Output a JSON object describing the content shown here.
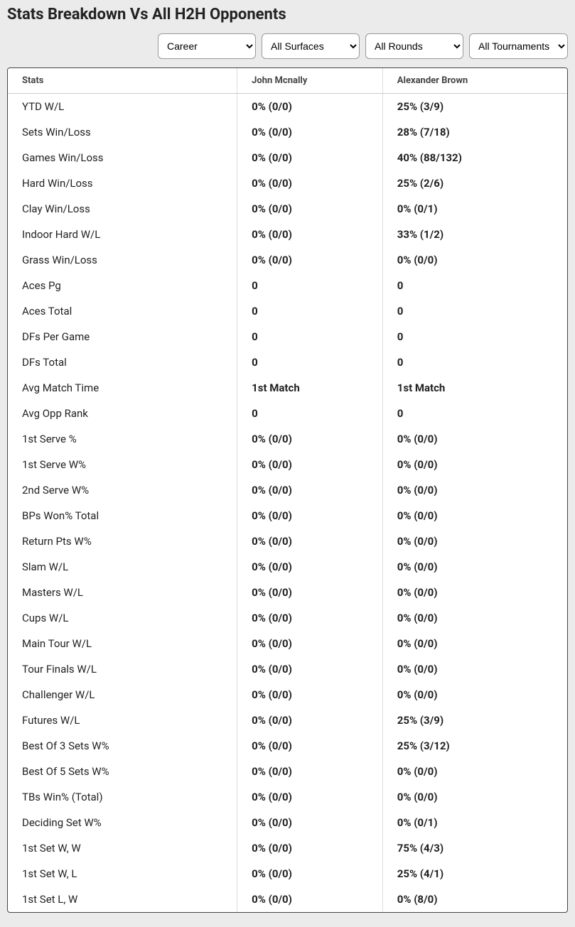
{
  "title": "Stats Breakdown Vs All H2H Opponents",
  "filters": {
    "period": {
      "selected": "Career"
    },
    "surface": {
      "selected": "All Surfaces"
    },
    "round": {
      "selected": "All Rounds"
    },
    "tournament": {
      "selected": "All Tournaments"
    }
  },
  "table": {
    "headers": {
      "stats": "Stats",
      "player1": "John Mcnally",
      "player2": "Alexander Brown"
    },
    "rows": [
      {
        "label": "YTD W/L",
        "p1": "0% (0/0)",
        "p2": "25% (3/9)"
      },
      {
        "label": "Sets Win/Loss",
        "p1": "0% (0/0)",
        "p2": "28% (7/18)"
      },
      {
        "label": "Games Win/Loss",
        "p1": "0% (0/0)",
        "p2": "40% (88/132)"
      },
      {
        "label": "Hard Win/Loss",
        "p1": "0% (0/0)",
        "p2": "25% (2/6)"
      },
      {
        "label": "Clay Win/Loss",
        "p1": "0% (0/0)",
        "p2": "0% (0/1)"
      },
      {
        "label": "Indoor Hard W/L",
        "p1": "0% (0/0)",
        "p2": "33% (1/2)"
      },
      {
        "label": "Grass Win/Loss",
        "p1": "0% (0/0)",
        "p2": "0% (0/0)"
      },
      {
        "label": "Aces Pg",
        "p1": "0",
        "p2": "0"
      },
      {
        "label": "Aces Total",
        "p1": "0",
        "p2": "0"
      },
      {
        "label": "DFs Per Game",
        "p1": "0",
        "p2": "0"
      },
      {
        "label": "DFs Total",
        "p1": "0",
        "p2": "0"
      },
      {
        "label": "Avg Match Time",
        "p1": "1st Match",
        "p2": "1st Match"
      },
      {
        "label": "Avg Opp Rank",
        "p1": "0",
        "p2": "0"
      },
      {
        "label": "1st Serve %",
        "p1": "0% (0/0)",
        "p2": "0% (0/0)"
      },
      {
        "label": "1st Serve W%",
        "p1": "0% (0/0)",
        "p2": "0% (0/0)"
      },
      {
        "label": "2nd Serve W%",
        "p1": "0% (0/0)",
        "p2": "0% (0/0)"
      },
      {
        "label": "BPs Won% Total",
        "p1": "0% (0/0)",
        "p2": "0% (0/0)"
      },
      {
        "label": "Return Pts W%",
        "p1": "0% (0/0)",
        "p2": "0% (0/0)"
      },
      {
        "label": "Slam W/L",
        "p1": "0% (0/0)",
        "p2": "0% (0/0)"
      },
      {
        "label": "Masters W/L",
        "p1": "0% (0/0)",
        "p2": "0% (0/0)"
      },
      {
        "label": "Cups W/L",
        "p1": "0% (0/0)",
        "p2": "0% (0/0)"
      },
      {
        "label": "Main Tour W/L",
        "p1": "0% (0/0)",
        "p2": "0% (0/0)"
      },
      {
        "label": "Tour Finals W/L",
        "p1": "0% (0/0)",
        "p2": "0% (0/0)"
      },
      {
        "label": "Challenger W/L",
        "p1": "0% (0/0)",
        "p2": "0% (0/0)"
      },
      {
        "label": "Futures W/L",
        "p1": "0% (0/0)",
        "p2": "25% (3/9)"
      },
      {
        "label": "Best Of 3 Sets W%",
        "p1": "0% (0/0)",
        "p2": "25% (3/12)"
      },
      {
        "label": "Best Of 5 Sets W%",
        "p1": "0% (0/0)",
        "p2": "0% (0/0)"
      },
      {
        "label": "TBs Win% (Total)",
        "p1": "0% (0/0)",
        "p2": "0% (0/0)"
      },
      {
        "label": "Deciding Set W%",
        "p1": "0% (0/0)",
        "p2": "0% (0/1)"
      },
      {
        "label": "1st Set W, W",
        "p1": "0% (0/0)",
        "p2": "75% (4/3)"
      },
      {
        "label": "1st Set W, L",
        "p1": "0% (0/0)",
        "p2": "25% (4/1)"
      },
      {
        "label": "1st Set L, W",
        "p1": "0% (0/0)",
        "p2": "0% (8/0)"
      }
    ]
  },
  "style": {
    "background": "#ebebeb",
    "table_border": "#444444",
    "cell_divider": "#dddddd",
    "header_divider": "#cccccc",
    "text_color": "#222222",
    "header_fontsize": 13,
    "row_fontsize": 15,
    "row_padding_v": 9,
    "column_widths_pct": [
      41,
      26,
      33
    ]
  }
}
